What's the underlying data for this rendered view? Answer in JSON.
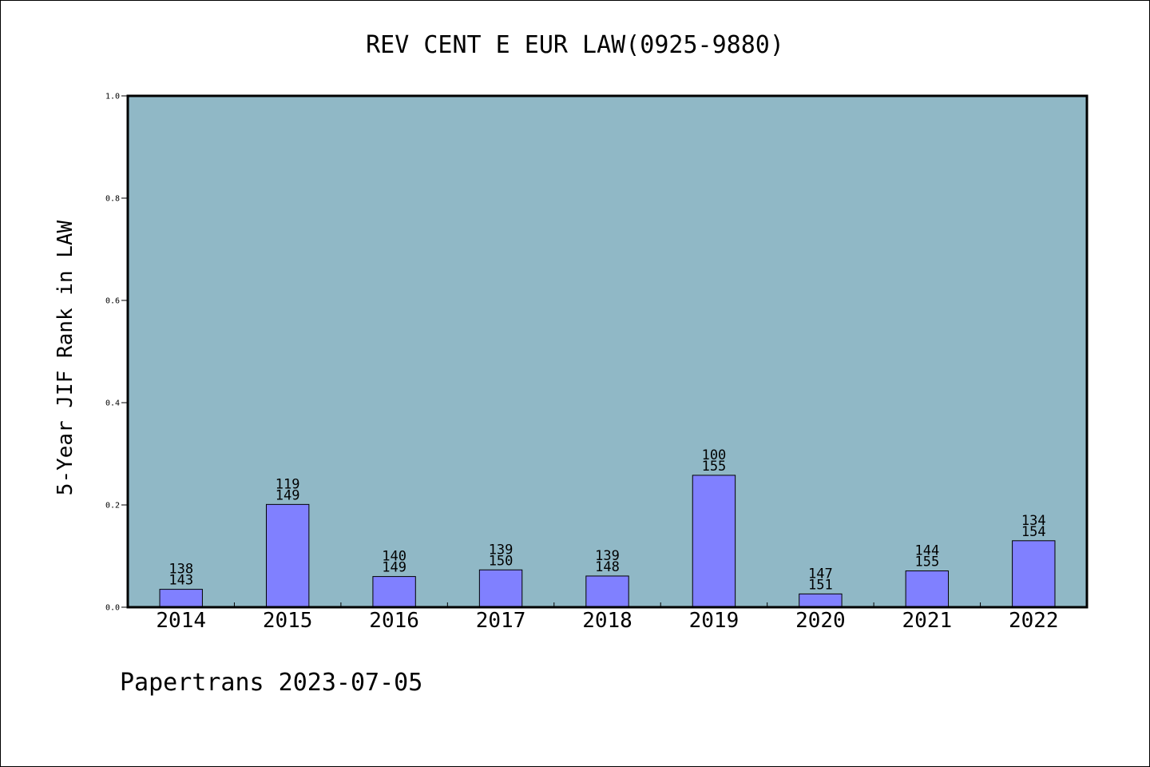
{
  "chart_data": {
    "type": "bar",
    "title": "REV CENT E EUR LAW(0925-9880)",
    "xlabel": "",
    "ylabel": "5-Year JIF Rank in LAW",
    "ylim": [
      0,
      1.0
    ],
    "yticks": [
      "0.0",
      "0.2",
      "0.4",
      "0.6",
      "0.8",
      "1.0"
    ],
    "categories": [
      "2014",
      "2015",
      "2016",
      "2017",
      "2018",
      "2019",
      "2020",
      "2021",
      "2022"
    ],
    "values": [
      0.035,
      0.201,
      0.06,
      0.073,
      0.061,
      0.258,
      0.026,
      0.071,
      0.13
    ],
    "labels_top": [
      "138",
      "119",
      "140",
      "139",
      "139",
      "100",
      "147",
      "144",
      "134"
    ],
    "labels_bottom": [
      "143",
      "149",
      "149",
      "150",
      "148",
      "155",
      "151",
      "155",
      "154"
    ],
    "grid": false,
    "colors": {
      "plot_background": "#90b8c6",
      "bar_fill": "#8080ff",
      "bar_stroke": "#000000"
    }
  },
  "footer": {
    "text": "Papertrans 2023-07-05"
  }
}
